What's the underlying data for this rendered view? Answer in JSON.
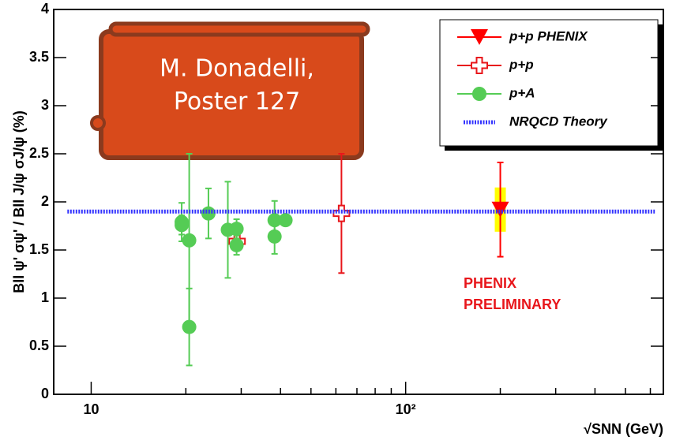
{
  "chart_data": {
    "type": "scatter",
    "xlabel": "√SNN (GeV)",
    "ylabel": "Bll ψ' σψ' / Bll J/ψ σJ/ψ (%)",
    "xscale": "log",
    "xlim": [
      7.6,
      660
    ],
    "ylim": [
      0,
      4
    ],
    "xticks": [
      10,
      {
        "value": 100,
        "label": "10²"
      }
    ],
    "xminorticks": [
      20,
      30,
      40,
      50,
      60,
      70,
      80,
      90,
      200,
      300,
      400,
      500,
      600
    ],
    "yticks": [
      0,
      0.5,
      1,
      1.5,
      2,
      2.5,
      3,
      3.5,
      4
    ],
    "legend": "upper right",
    "series": [
      {
        "name": "p+p PHENIX",
        "color": "#ff0000",
        "marker": "triangle-down",
        "x": [
          200
        ],
        "values": [
          1.92
        ],
        "errors": [
          0.49
        ],
        "sys_errors": [
          0.23
        ],
        "sys_color": "#ffff00"
      },
      {
        "name": "p+p",
        "color": "#e8161b",
        "marker": "open-cross",
        "x": [
          29.1,
          62.5
        ],
        "values": [
          1.59,
          1.88
        ],
        "errors": [
          0.05,
          0.62
        ]
      },
      {
        "name": "p+A",
        "color": "#55cc55",
        "marker": "circle",
        "x": [
          19.4,
          19.4,
          20.5,
          20.5,
          23.6,
          27.2,
          29.0,
          29.0,
          38.3,
          38.3,
          41.5
        ],
        "values": [
          1.79,
          1.76,
          1.6,
          0.7,
          1.88,
          1.71,
          1.72,
          1.55,
          1.81,
          1.64,
          1.81
        ],
        "errors": [
          0.2,
          0.1,
          0.9,
          0.4,
          0.26,
          0.5,
          0.1,
          0.1,
          0.2,
          0.18,
          0.05
        ]
      },
      {
        "name": "NRQCD Theory",
        "color": "#3333ff",
        "marker": "line",
        "x": [
          8.4,
          620
        ],
        "values": [
          1.9,
          1.9
        ]
      }
    ],
    "box_text": [
      "M. Donadelli,",
      "Poster 127"
    ],
    "stamp": [
      "PHENIX",
      "PRELIMINARY"
    ]
  }
}
